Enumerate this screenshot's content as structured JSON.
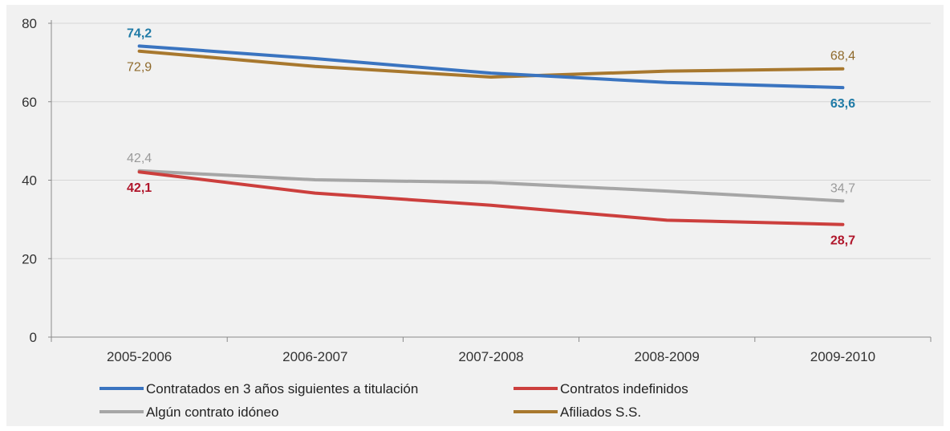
{
  "chart_data": {
    "type": "line",
    "categories": [
      "2005-2006",
      "2006-2007",
      "2007-2008",
      "2008-2009",
      "2009-2010"
    ],
    "ylim": [
      0,
      80
    ],
    "yticks": [
      "0",
      "20",
      "40",
      "60",
      "80"
    ],
    "grid": true,
    "legend_position": "bottom",
    "series": [
      {
        "name": "Contratados en 3 años siguientes a titulación",
        "color": "#3a74c0",
        "label_color": "#1e7aa6",
        "values": [
          74.2,
          71.0,
          67.3,
          64.9,
          63.6
        ],
        "labels": [
          {
            "index": 0,
            "text": "74,2",
            "bold": true,
            "pos": "above"
          },
          {
            "index": 4,
            "text": "63,6",
            "bold": true,
            "pos": "below"
          }
        ]
      },
      {
        "name": "Contratos indefinidos",
        "color": "#cc3f3d",
        "label_color": "#b0162b",
        "values": [
          42.1,
          36.7,
          33.6,
          29.8,
          28.7
        ],
        "labels": [
          {
            "index": 0,
            "text": "42,1",
            "bold": true,
            "pos": "below"
          },
          {
            "index": 4,
            "text": "28,7",
            "bold": true,
            "pos": "below"
          }
        ]
      },
      {
        "name": "Algún contrato idóneo",
        "color": "#a6a6a6",
        "label_color": "#9a9a9a",
        "values": [
          42.4,
          40.1,
          39.4,
          37.2,
          34.7
        ],
        "labels": [
          {
            "index": 0,
            "text": "42,4",
            "bold": false,
            "pos": "above"
          },
          {
            "index": 4,
            "text": "34,7",
            "bold": false,
            "pos": "above"
          }
        ]
      },
      {
        "name": "Afiliados S.S.",
        "color": "#a8782e",
        "label_color": "#8f6a2c",
        "values": [
          72.9,
          69.0,
          66.3,
          67.8,
          68.4
        ],
        "labels": [
          {
            "index": 0,
            "text": "72,9",
            "bold": false,
            "pos": "below"
          },
          {
            "index": 4,
            "text": "68,4",
            "bold": false,
            "pos": "above"
          }
        ]
      }
    ],
    "legend_order": [
      0,
      1,
      2,
      3
    ]
  }
}
